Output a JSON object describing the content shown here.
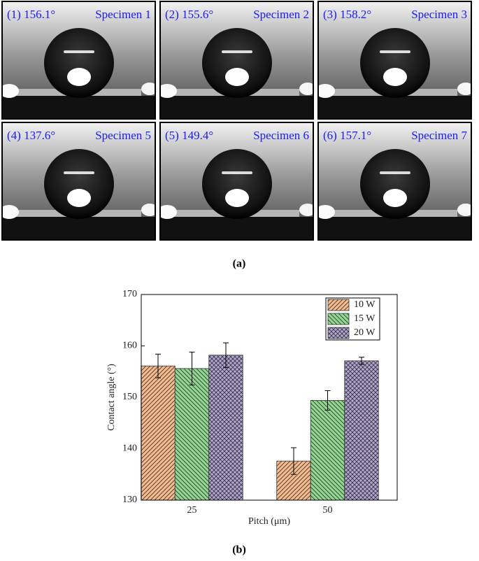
{
  "panels": [
    {
      "angle": "(1) 156.1°",
      "specimen": "Specimen 1"
    },
    {
      "angle": "(2) 155.6°",
      "specimen": "Specimen 2"
    },
    {
      "angle": "(3) 158.2°",
      "specimen": "Specimen 3"
    },
    {
      "angle": "(4) 137.6°",
      "specimen": "Specimen 5"
    },
    {
      "angle": "(5) 149.4°",
      "specimen": "Specimen 6"
    },
    {
      "angle": "(6) 157.1°",
      "specimen": "Specimen 7"
    }
  ],
  "caption_a": "(a)",
  "caption_b": "(b)",
  "chart_data": {
    "type": "bar",
    "x_label": "Pitch (μm)",
    "y_label": "Contact angle (°)",
    "categories": [
      "25",
      "50"
    ],
    "series": [
      {
        "name": "10 W",
        "color": "#f5b98c",
        "values": [
          156.1,
          137.6
        ],
        "errors": [
          2.3,
          2.6
        ]
      },
      {
        "name": "15 W",
        "color": "#8fd68f",
        "values": [
          155.6,
          149.4
        ],
        "errors": [
          3.2,
          1.9
        ]
      },
      {
        "name": "20 W",
        "color": "#b3a4d6",
        "values": [
          158.2,
          157.1
        ],
        "errors": [
          2.4,
          0.7
        ]
      }
    ],
    "ylim": [
      130,
      170
    ],
    "yticks": [
      130,
      140,
      150,
      160,
      170
    ],
    "legend": "upper right",
    "grid": false
  }
}
